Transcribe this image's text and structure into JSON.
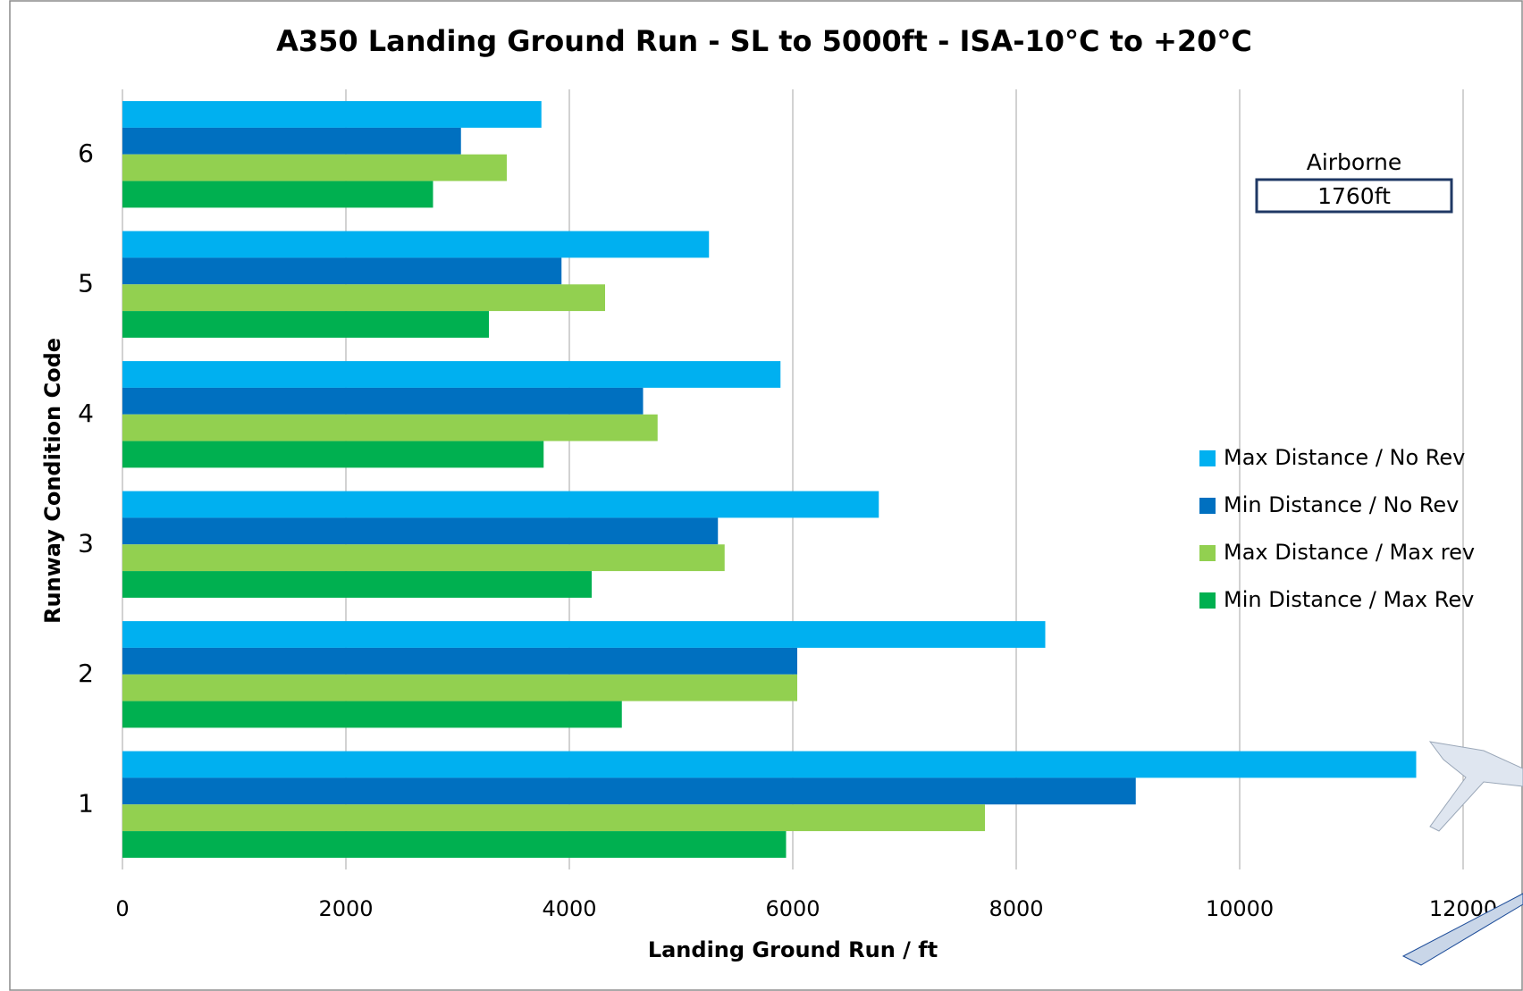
{
  "chart_data": {
    "type": "bar",
    "orientation": "horizontal",
    "title": "A350 Landing Ground Run - SL to 5000ft - ISA-10°C to +20°C",
    "x_label": "Landing Ground Run / ft",
    "y_label": "Runway Condition Code",
    "categories": [
      "1",
      "2",
      "3",
      "4",
      "5",
      "6"
    ],
    "series": [
      {
        "name": "Max Distance / No Rev",
        "color": "#00b0f0",
        "values": [
          11580,
          8260,
          6770,
          5890,
          5250,
          3750
        ]
      },
      {
        "name": "Min Distance / No Rev",
        "color": "#0070c0",
        "values": [
          9070,
          6040,
          5330,
          4660,
          3930,
          3030
        ]
      },
      {
        "name": "Max Distance / Max rev",
        "color": "#92d050",
        "values": [
          7720,
          6040,
          5390,
          4790,
          4320,
          3440
        ]
      },
      {
        "name": "Min Distance / Max Rev",
        "color": "#00b050",
        "values": [
          5940,
          4470,
          4200,
          3770,
          3280,
          2780
        ]
      }
    ],
    "xlim": [
      0,
      12000
    ],
    "xticks": [
      0,
      2000,
      4000,
      6000,
      8000,
      10000,
      12000
    ],
    "grid": true,
    "legend": "right",
    "annotation": {
      "title": "Airborne",
      "value": "1760ft"
    }
  }
}
